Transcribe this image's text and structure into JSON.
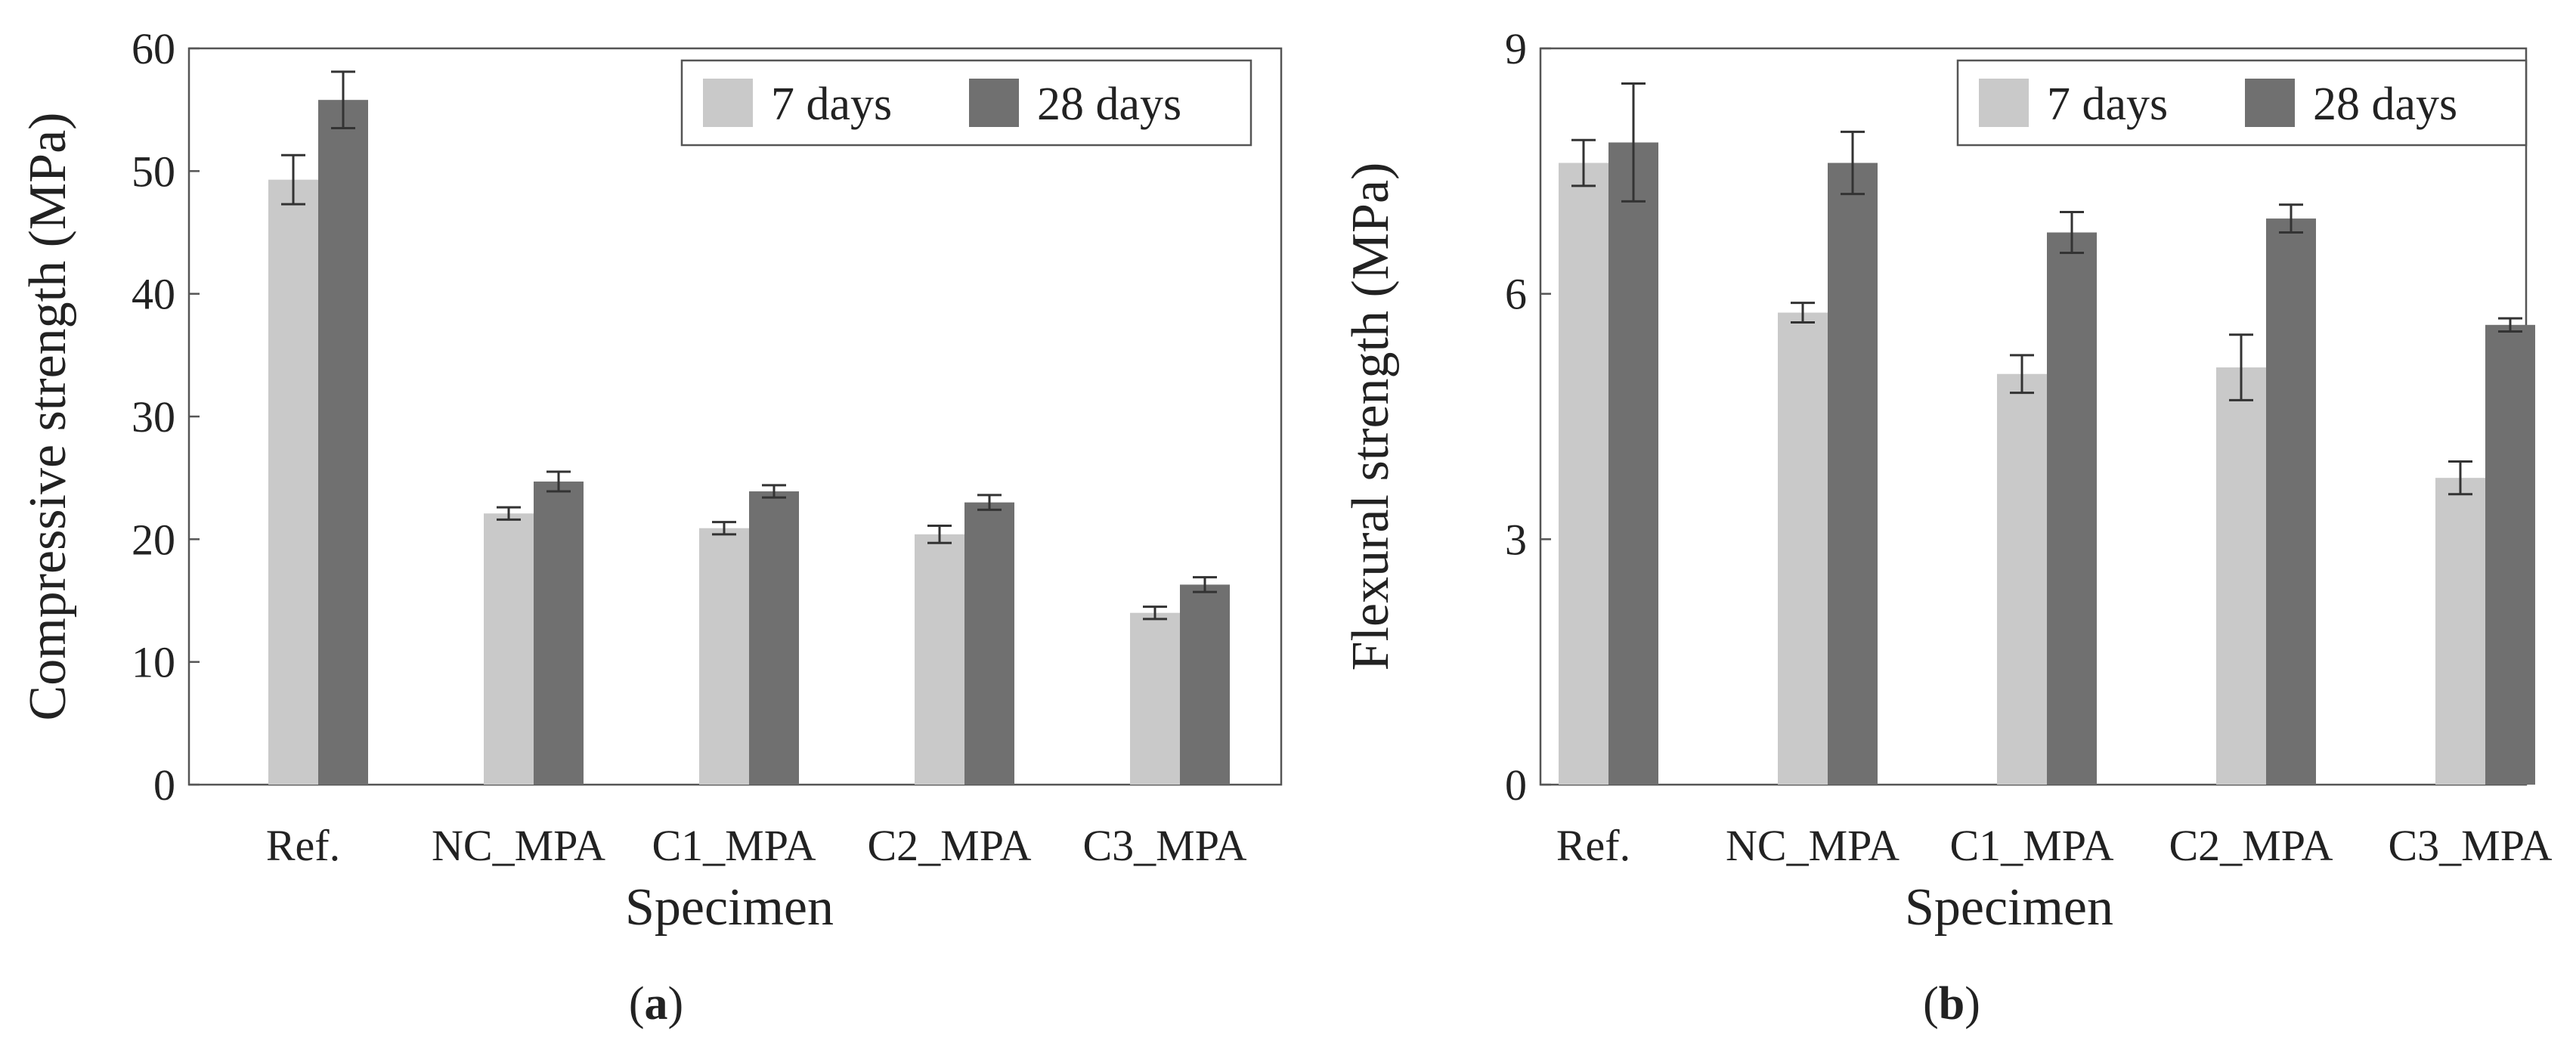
{
  "chart_data": [
    {
      "type": "bar",
      "panel_label": "a",
      "xlabel": "Specimen",
      "ylabel": "Compressive strength (MPa)",
      "ylim": [
        0,
        60
      ],
      "yticks": [
        0,
        10,
        20,
        30,
        40,
        50,
        60
      ],
      "grid": false,
      "legend_position": "top-right",
      "categories": [
        "Ref.",
        "NC_MPA",
        "C1_MPA",
        "C2_MPA",
        "C3_MPA"
      ],
      "series": [
        {
          "name": "7 days",
          "color": "#c9c9c9",
          "values": [
            49.3,
            22.1,
            20.9,
            20.4,
            14.0
          ],
          "errors": [
            2.0,
            0.5,
            0.5,
            0.7,
            0.5
          ]
        },
        {
          "name": "28 days",
          "color": "#707070",
          "values": [
            55.8,
            24.7,
            23.9,
            23.0,
            16.3
          ],
          "errors": [
            2.3,
            0.8,
            0.5,
            0.6,
            0.6
          ]
        }
      ]
    },
    {
      "type": "bar",
      "panel_label": "b",
      "xlabel": "Specimen",
      "ylabel": "Flexural strength (MPa)",
      "ylim": [
        0,
        9
      ],
      "yticks": [
        0,
        3,
        6,
        9
      ],
      "grid": false,
      "legend_position": "top-right",
      "categories": [
        "Ref.",
        "NC_MPA",
        "C1_MPA",
        "C2_MPA",
        "C3_MPA"
      ],
      "series": [
        {
          "name": "7 days",
          "color": "#c9c9c9",
          "values": [
            7.6,
            5.77,
            5.02,
            5.1,
            3.75
          ],
          "errors": [
            0.28,
            0.12,
            0.23,
            0.4,
            0.2
          ]
        },
        {
          "name": "28 days",
          "color": "#707070",
          "values": [
            7.85,
            7.6,
            6.75,
            6.92,
            5.62
          ],
          "errors": [
            0.72,
            0.38,
            0.25,
            0.17,
            0.08
          ]
        }
      ]
    }
  ]
}
